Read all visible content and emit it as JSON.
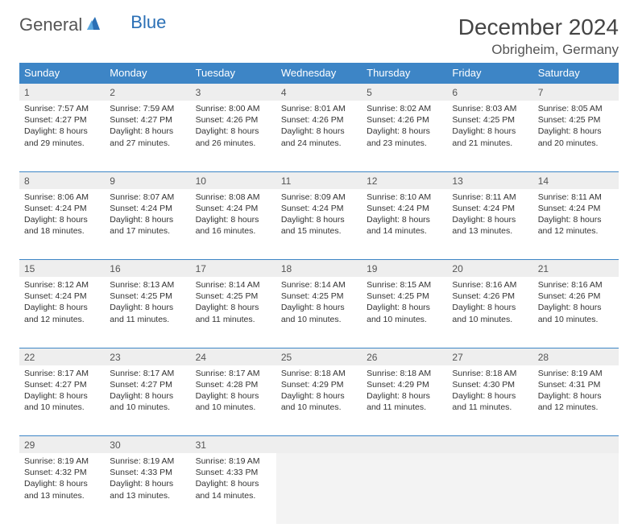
{
  "logo": {
    "text1": "General",
    "text2": "Blue"
  },
  "title": "December 2024",
  "location": "Obrigheim, Germany",
  "day_headers": [
    "Sunday",
    "Monday",
    "Tuesday",
    "Wednesday",
    "Thursday",
    "Friday",
    "Saturday"
  ],
  "colors": {
    "header_bg": "#3d85c6",
    "header_fg": "#ffffff",
    "daynum_bg": "#eeeeee",
    "row_divider": "#3d85c6",
    "logo_gray": "#555555",
    "logo_blue": "#2a6fb5"
  },
  "weeks": [
    [
      {
        "num": "1",
        "sunrise": "Sunrise: 7:57 AM",
        "sunset": "Sunset: 4:27 PM",
        "day1": "Daylight: 8 hours",
        "day2": "and 29 minutes."
      },
      {
        "num": "2",
        "sunrise": "Sunrise: 7:59 AM",
        "sunset": "Sunset: 4:27 PM",
        "day1": "Daylight: 8 hours",
        "day2": "and 27 minutes."
      },
      {
        "num": "3",
        "sunrise": "Sunrise: 8:00 AM",
        "sunset": "Sunset: 4:26 PM",
        "day1": "Daylight: 8 hours",
        "day2": "and 26 minutes."
      },
      {
        "num": "4",
        "sunrise": "Sunrise: 8:01 AM",
        "sunset": "Sunset: 4:26 PM",
        "day1": "Daylight: 8 hours",
        "day2": "and 24 minutes."
      },
      {
        "num": "5",
        "sunrise": "Sunrise: 8:02 AM",
        "sunset": "Sunset: 4:26 PM",
        "day1": "Daylight: 8 hours",
        "day2": "and 23 minutes."
      },
      {
        "num": "6",
        "sunrise": "Sunrise: 8:03 AM",
        "sunset": "Sunset: 4:25 PM",
        "day1": "Daylight: 8 hours",
        "day2": "and 21 minutes."
      },
      {
        "num": "7",
        "sunrise": "Sunrise: 8:05 AM",
        "sunset": "Sunset: 4:25 PM",
        "day1": "Daylight: 8 hours",
        "day2": "and 20 minutes."
      }
    ],
    [
      {
        "num": "8",
        "sunrise": "Sunrise: 8:06 AM",
        "sunset": "Sunset: 4:24 PM",
        "day1": "Daylight: 8 hours",
        "day2": "and 18 minutes."
      },
      {
        "num": "9",
        "sunrise": "Sunrise: 8:07 AM",
        "sunset": "Sunset: 4:24 PM",
        "day1": "Daylight: 8 hours",
        "day2": "and 17 minutes."
      },
      {
        "num": "10",
        "sunrise": "Sunrise: 8:08 AM",
        "sunset": "Sunset: 4:24 PM",
        "day1": "Daylight: 8 hours",
        "day2": "and 16 minutes."
      },
      {
        "num": "11",
        "sunrise": "Sunrise: 8:09 AM",
        "sunset": "Sunset: 4:24 PM",
        "day1": "Daylight: 8 hours",
        "day2": "and 15 minutes."
      },
      {
        "num": "12",
        "sunrise": "Sunrise: 8:10 AM",
        "sunset": "Sunset: 4:24 PM",
        "day1": "Daylight: 8 hours",
        "day2": "and 14 minutes."
      },
      {
        "num": "13",
        "sunrise": "Sunrise: 8:11 AM",
        "sunset": "Sunset: 4:24 PM",
        "day1": "Daylight: 8 hours",
        "day2": "and 13 minutes."
      },
      {
        "num": "14",
        "sunrise": "Sunrise: 8:11 AM",
        "sunset": "Sunset: 4:24 PM",
        "day1": "Daylight: 8 hours",
        "day2": "and 12 minutes."
      }
    ],
    [
      {
        "num": "15",
        "sunrise": "Sunrise: 8:12 AM",
        "sunset": "Sunset: 4:24 PM",
        "day1": "Daylight: 8 hours",
        "day2": "and 12 minutes."
      },
      {
        "num": "16",
        "sunrise": "Sunrise: 8:13 AM",
        "sunset": "Sunset: 4:25 PM",
        "day1": "Daylight: 8 hours",
        "day2": "and 11 minutes."
      },
      {
        "num": "17",
        "sunrise": "Sunrise: 8:14 AM",
        "sunset": "Sunset: 4:25 PM",
        "day1": "Daylight: 8 hours",
        "day2": "and 11 minutes."
      },
      {
        "num": "18",
        "sunrise": "Sunrise: 8:14 AM",
        "sunset": "Sunset: 4:25 PM",
        "day1": "Daylight: 8 hours",
        "day2": "and 10 minutes."
      },
      {
        "num": "19",
        "sunrise": "Sunrise: 8:15 AM",
        "sunset": "Sunset: 4:25 PM",
        "day1": "Daylight: 8 hours",
        "day2": "and 10 minutes."
      },
      {
        "num": "20",
        "sunrise": "Sunrise: 8:16 AM",
        "sunset": "Sunset: 4:26 PM",
        "day1": "Daylight: 8 hours",
        "day2": "and 10 minutes."
      },
      {
        "num": "21",
        "sunrise": "Sunrise: 8:16 AM",
        "sunset": "Sunset: 4:26 PM",
        "day1": "Daylight: 8 hours",
        "day2": "and 10 minutes."
      }
    ],
    [
      {
        "num": "22",
        "sunrise": "Sunrise: 8:17 AM",
        "sunset": "Sunset: 4:27 PM",
        "day1": "Daylight: 8 hours",
        "day2": "and 10 minutes."
      },
      {
        "num": "23",
        "sunrise": "Sunrise: 8:17 AM",
        "sunset": "Sunset: 4:27 PM",
        "day1": "Daylight: 8 hours",
        "day2": "and 10 minutes."
      },
      {
        "num": "24",
        "sunrise": "Sunrise: 8:17 AM",
        "sunset": "Sunset: 4:28 PM",
        "day1": "Daylight: 8 hours",
        "day2": "and 10 minutes."
      },
      {
        "num": "25",
        "sunrise": "Sunrise: 8:18 AM",
        "sunset": "Sunset: 4:29 PM",
        "day1": "Daylight: 8 hours",
        "day2": "and 10 minutes."
      },
      {
        "num": "26",
        "sunrise": "Sunrise: 8:18 AM",
        "sunset": "Sunset: 4:29 PM",
        "day1": "Daylight: 8 hours",
        "day2": "and 11 minutes."
      },
      {
        "num": "27",
        "sunrise": "Sunrise: 8:18 AM",
        "sunset": "Sunset: 4:30 PM",
        "day1": "Daylight: 8 hours",
        "day2": "and 11 minutes."
      },
      {
        "num": "28",
        "sunrise": "Sunrise: 8:19 AM",
        "sunset": "Sunset: 4:31 PM",
        "day1": "Daylight: 8 hours",
        "day2": "and 12 minutes."
      }
    ],
    [
      {
        "num": "29",
        "sunrise": "Sunrise: 8:19 AM",
        "sunset": "Sunset: 4:32 PM",
        "day1": "Daylight: 8 hours",
        "day2": "and 13 minutes."
      },
      {
        "num": "30",
        "sunrise": "Sunrise: 8:19 AM",
        "sunset": "Sunset: 4:33 PM",
        "day1": "Daylight: 8 hours",
        "day2": "and 13 minutes."
      },
      {
        "num": "31",
        "sunrise": "Sunrise: 8:19 AM",
        "sunset": "Sunset: 4:33 PM",
        "day1": "Daylight: 8 hours",
        "day2": "and 14 minutes."
      },
      null,
      null,
      null,
      null
    ]
  ]
}
